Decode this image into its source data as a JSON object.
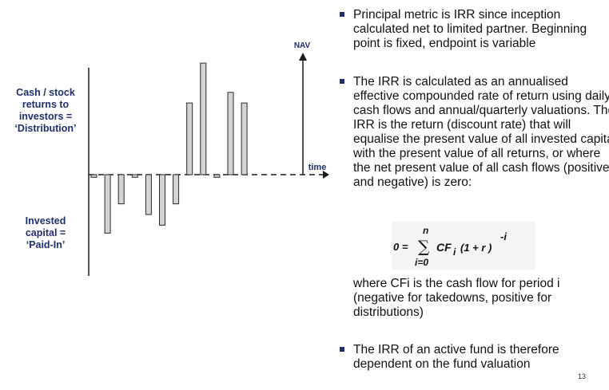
{
  "diagram": {
    "y_axis_label": "NAV",
    "x_axis_label": "time",
    "label_distribution": "Cash / stock\nreturns to\ninvestors =\n‘Distribution’",
    "label_paid_in": "Invested\ncapital =\n‘Paid-In’",
    "bars": [
      {
        "value": -1
      },
      {
        "value": -22
      },
      {
        "value": -11
      },
      {
        "value": -1
      },
      {
        "value": -15
      },
      {
        "value": -19
      },
      {
        "value": -11
      },
      {
        "value": 27
      },
      {
        "value": 42
      },
      {
        "value": -1
      },
      {
        "value": 31
      },
      {
        "value": 27
      }
    ],
    "colors": {
      "axis": "#1a1a1a",
      "bar_fill": "#d4d4d4",
      "bar_stroke": "#2a2a2a",
      "label": "#1f2f6b"
    }
  },
  "text": {
    "bullet1": "Principal metric is IRR since inception calculated net to limited partner. Beginning point is fixed, endpoint is variable",
    "bullet2": "The IRR is calculated as an annualised effective compounded rate of return using daily cash flows and annual/quarterly valuations. The IRR is the return (discount rate) that will equalise the present value of all invested capital with the present value of all returns, or where the net present value of all cash flows (positive and negative) is zero:",
    "paragraph": "where CFi is the cash flow for period i (negative for takedowns, positive for distributions)",
    "bullet3": "The IRR of an active fund is therefore dependent on the fund valuation",
    "page_number": "13"
  },
  "formula": {
    "lhs": "0 =",
    "sigma": "∑",
    "upper": "n",
    "lower": "i=0",
    "term": "CF",
    "subscript": "i",
    "body": "(1 + r )",
    "exponent": "-i"
  }
}
